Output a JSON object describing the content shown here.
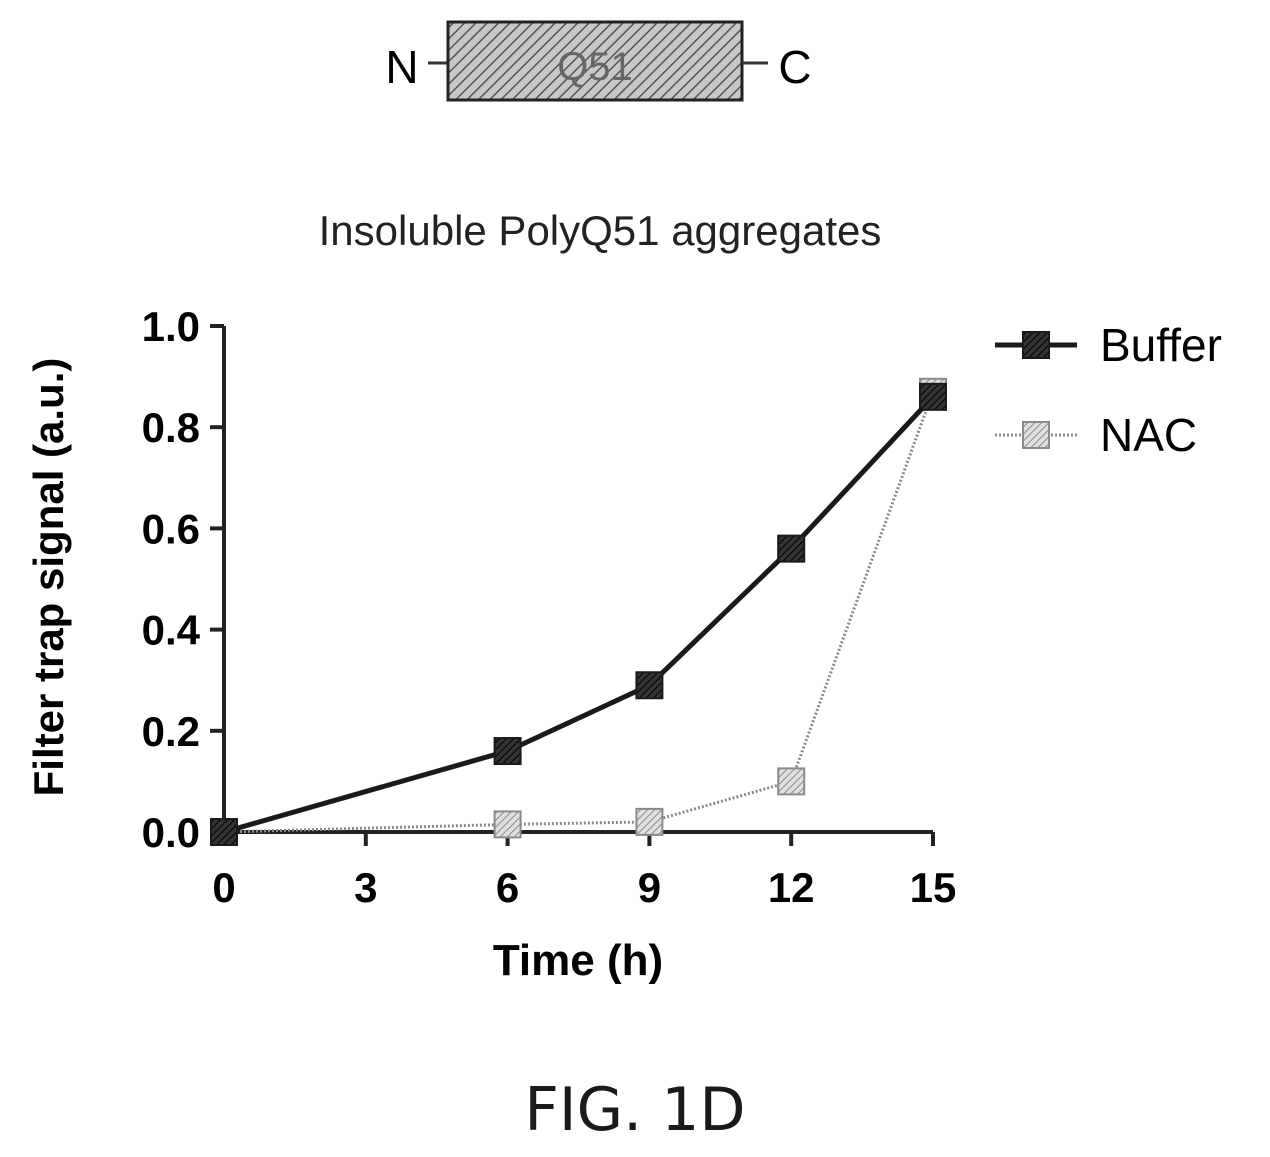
{
  "construct": {
    "n_label": "N",
    "box_label": "Q51",
    "c_label": "C"
  },
  "chart_data": {
    "type": "line",
    "title": "Insoluble PolyQ51 aggregates",
    "xlabel": "Time (h)",
    "ylabel": "Filter trap signal (a.u.)",
    "x_ticks": [
      0,
      3,
      6,
      9,
      12,
      15
    ],
    "y_ticks": [
      "0.0",
      "0.2",
      "0.4",
      "0.6",
      "0.8",
      "1.0"
    ],
    "xlim": [
      0,
      15
    ],
    "ylim": [
      0,
      1.0
    ],
    "grid": false,
    "legend_position": "top-right",
    "series": [
      {
        "name": "Buffer",
        "x": [
          0,
          6,
          9,
          12,
          15
        ],
        "y": [
          0.0,
          0.16,
          0.29,
          0.56,
          0.86
        ],
        "color": "#1a1a1a"
      },
      {
        "name": "NAC",
        "x": [
          0,
          6,
          9,
          12,
          15
        ],
        "y": [
          0.0,
          0.015,
          0.02,
          0.1,
          0.87
        ],
        "color": "#8a8a8a"
      }
    ]
  },
  "caption": "FIG. 1D"
}
